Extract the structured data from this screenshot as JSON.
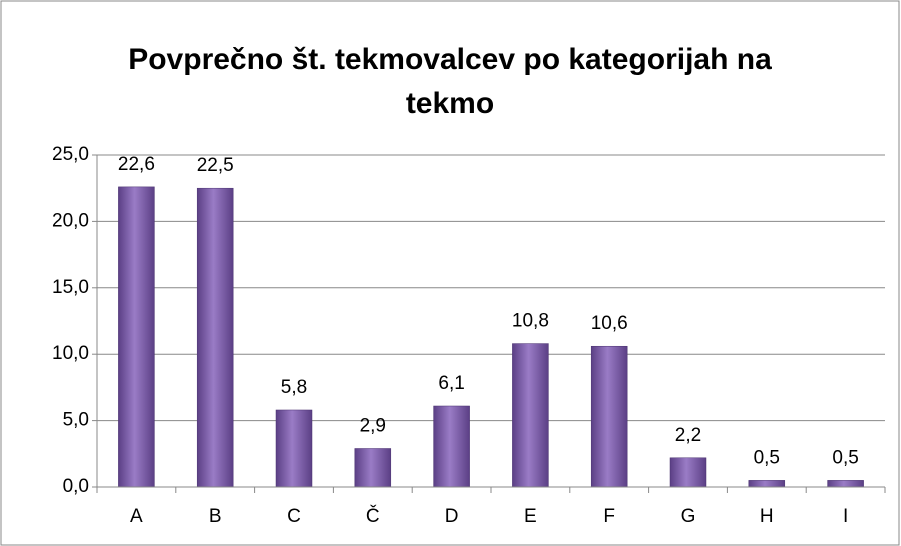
{
  "chart_data": {
    "type": "bar",
    "title": "Povprečno št. tekmovalcev po kategorijah na tekmo",
    "categories": [
      "A",
      "B",
      "C",
      "Č",
      "D",
      "E",
      "F",
      "G",
      "H",
      "I"
    ],
    "values": [
      22.6,
      22.5,
      5.8,
      2.9,
      6.1,
      10.8,
      10.6,
      2.2,
      0.5,
      0.5
    ],
    "value_labels": [
      "22,6",
      "22,5",
      "5,8",
      "2,9",
      "6,1",
      "10,8",
      "10,6",
      "2,2",
      "0,5",
      "0,5"
    ],
    "color": "#7e5ca8",
    "ylim": [
      0,
      25
    ],
    "yticks": [
      {
        "value": 0,
        "label": "0,0"
      },
      {
        "value": 5,
        "label": "5,0"
      },
      {
        "value": 10,
        "label": "10,0"
      },
      {
        "value": 15,
        "label": "15,0"
      },
      {
        "value": 20,
        "label": "20,0"
      },
      {
        "value": 25,
        "label": "25,0"
      }
    ],
    "grid": true
  }
}
